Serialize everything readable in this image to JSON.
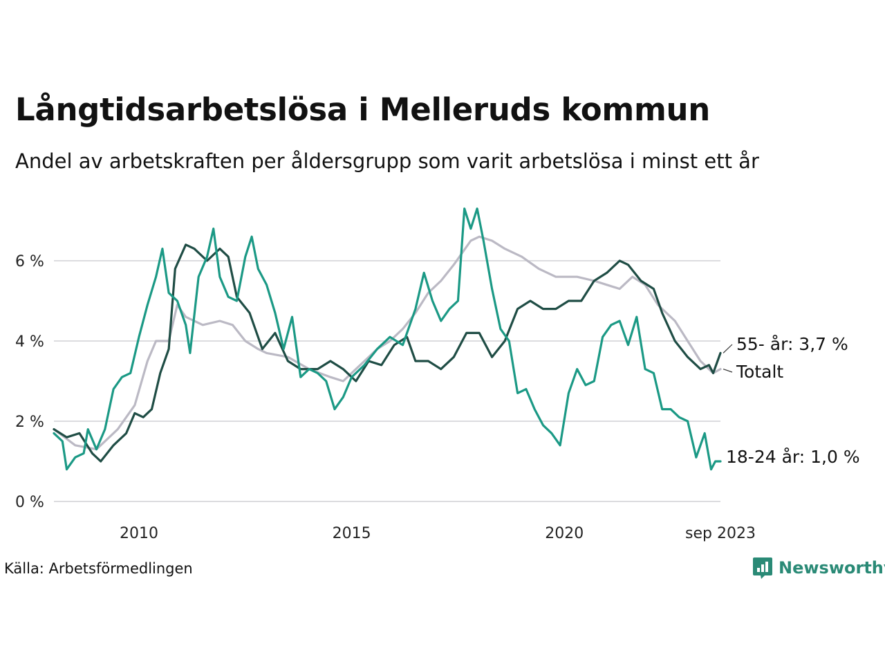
{
  "header": {
    "title": "Långtidsarbetslösa i Melleruds kommun",
    "subtitle": "Andel av arbetskraften per åldersgrupp som varit arbetslösa i minst ett år"
  },
  "footer": {
    "source": "Källa: Arbetsförmedlingen",
    "brand": "Newsworthy",
    "brand_color": "#2a8a76",
    "brand_icon": "bar-chart-bubble-icon"
  },
  "chart_data": {
    "type": "line",
    "title": "Långtidsarbetslösa i Melleruds kommun",
    "xlabel": "",
    "ylabel": "",
    "x_range": [
      2008.0,
      2023.67
    ],
    "ylim": [
      0,
      7.4
    ],
    "y_ticks": [
      0,
      2,
      4,
      6
    ],
    "y_tick_labels": [
      "0 %",
      "2 %",
      "4 %",
      "6 %"
    ],
    "x_ticks": [
      2010,
      2015,
      2020,
      2023.67
    ],
    "x_tick_labels": [
      "2010",
      "2015",
      "2020",
      "sep 2023"
    ],
    "grid": true,
    "series": [
      {
        "name": "Totalt",
        "label": "Totalt",
        "color": "#bbb9c4",
        "points": [
          [
            2008.0,
            1.8
          ],
          [
            2008.5,
            1.4
          ],
          [
            2009.0,
            1.3
          ],
          [
            2009.5,
            1.8
          ],
          [
            2009.9,
            2.4
          ],
          [
            2010.2,
            3.5
          ],
          [
            2010.4,
            4.0
          ],
          [
            2010.7,
            4.0
          ],
          [
            2010.9,
            4.9
          ],
          [
            2011.1,
            4.6
          ],
          [
            2011.5,
            4.4
          ],
          [
            2011.9,
            4.5
          ],
          [
            2012.2,
            4.4
          ],
          [
            2012.5,
            4.0
          ],
          [
            2012.8,
            3.8
          ],
          [
            2013.0,
            3.7
          ],
          [
            2013.5,
            3.6
          ],
          [
            2014.0,
            3.3
          ],
          [
            2014.5,
            3.1
          ],
          [
            2014.8,
            3.0
          ],
          [
            2015.0,
            3.2
          ],
          [
            2015.3,
            3.5
          ],
          [
            2015.6,
            3.8
          ],
          [
            2015.9,
            4.0
          ],
          [
            2016.2,
            4.3
          ],
          [
            2016.5,
            4.7
          ],
          [
            2016.8,
            5.2
          ],
          [
            2017.1,
            5.5
          ],
          [
            2017.4,
            5.9
          ],
          [
            2017.6,
            6.2
          ],
          [
            2017.8,
            6.5
          ],
          [
            2018.0,
            6.6
          ],
          [
            2018.3,
            6.5
          ],
          [
            2018.6,
            6.3
          ],
          [
            2019.0,
            6.1
          ],
          [
            2019.4,
            5.8
          ],
          [
            2019.8,
            5.6
          ],
          [
            2020.3,
            5.6
          ],
          [
            2020.7,
            5.5
          ],
          [
            2021.0,
            5.4
          ],
          [
            2021.3,
            5.3
          ],
          [
            2021.6,
            5.6
          ],
          [
            2021.9,
            5.4
          ],
          [
            2022.2,
            4.9
          ],
          [
            2022.6,
            4.5
          ],
          [
            2022.9,
            4.0
          ],
          [
            2023.2,
            3.5
          ],
          [
            2023.5,
            3.2
          ],
          [
            2023.67,
            3.3
          ]
        ]
      },
      {
        "name": "55- år",
        "label": "55- år: 3,7 %",
        "color": "#1f4d45",
        "points": [
          [
            2008.0,
            1.8
          ],
          [
            2008.3,
            1.6
          ],
          [
            2008.6,
            1.7
          ],
          [
            2008.9,
            1.2
          ],
          [
            2009.1,
            1.0
          ],
          [
            2009.4,
            1.4
          ],
          [
            2009.7,
            1.7
          ],
          [
            2009.9,
            2.2
          ],
          [
            2010.1,
            2.1
          ],
          [
            2010.3,
            2.3
          ],
          [
            2010.5,
            3.2
          ],
          [
            2010.7,
            3.8
          ],
          [
            2010.85,
            5.8
          ],
          [
            2011.1,
            6.4
          ],
          [
            2011.3,
            6.3
          ],
          [
            2011.6,
            6.0
          ],
          [
            2011.9,
            6.3
          ],
          [
            2012.1,
            6.1
          ],
          [
            2012.3,
            5.1
          ],
          [
            2012.6,
            4.7
          ],
          [
            2012.9,
            3.8
          ],
          [
            2013.2,
            4.2
          ],
          [
            2013.5,
            3.5
          ],
          [
            2013.8,
            3.3
          ],
          [
            2014.2,
            3.3
          ],
          [
            2014.5,
            3.5
          ],
          [
            2014.8,
            3.3
          ],
          [
            2015.1,
            3.0
          ],
          [
            2015.4,
            3.5
          ],
          [
            2015.7,
            3.4
          ],
          [
            2016.0,
            3.9
          ],
          [
            2016.3,
            4.1
          ],
          [
            2016.5,
            3.5
          ],
          [
            2016.8,
            3.5
          ],
          [
            2017.1,
            3.3
          ],
          [
            2017.4,
            3.6
          ],
          [
            2017.7,
            4.2
          ],
          [
            2018.0,
            4.2
          ],
          [
            2018.3,
            3.6
          ],
          [
            2018.6,
            4.0
          ],
          [
            2018.9,
            4.8
          ],
          [
            2019.2,
            5.0
          ],
          [
            2019.5,
            4.8
          ],
          [
            2019.8,
            4.8
          ],
          [
            2020.1,
            5.0
          ],
          [
            2020.4,
            5.0
          ],
          [
            2020.7,
            5.5
          ],
          [
            2021.0,
            5.7
          ],
          [
            2021.3,
            6.0
          ],
          [
            2021.5,
            5.9
          ],
          [
            2021.8,
            5.5
          ],
          [
            2022.1,
            5.3
          ],
          [
            2022.3,
            4.7
          ],
          [
            2022.6,
            4.0
          ],
          [
            2022.9,
            3.6
          ],
          [
            2023.2,
            3.3
          ],
          [
            2023.4,
            3.4
          ],
          [
            2023.5,
            3.2
          ],
          [
            2023.67,
            3.7
          ]
        ]
      },
      {
        "name": "18-24 år",
        "label": "18-24 år: 1,0 %",
        "color": "#1b9985",
        "points": [
          [
            2008.0,
            1.7
          ],
          [
            2008.2,
            1.5
          ],
          [
            2008.3,
            0.8
          ],
          [
            2008.5,
            1.1
          ],
          [
            2008.7,
            1.2
          ],
          [
            2008.8,
            1.8
          ],
          [
            2009.0,
            1.3
          ],
          [
            2009.2,
            1.8
          ],
          [
            2009.4,
            2.8
          ],
          [
            2009.6,
            3.1
          ],
          [
            2009.8,
            3.2
          ],
          [
            2010.0,
            4.1
          ],
          [
            2010.2,
            4.9
          ],
          [
            2010.4,
            5.6
          ],
          [
            2010.55,
            6.3
          ],
          [
            2010.7,
            5.2
          ],
          [
            2010.9,
            5.0
          ],
          [
            2011.1,
            4.4
          ],
          [
            2011.2,
            3.7
          ],
          [
            2011.4,
            5.6
          ],
          [
            2011.6,
            6.1
          ],
          [
            2011.75,
            6.8
          ],
          [
            2011.9,
            5.6
          ],
          [
            2012.1,
            5.1
          ],
          [
            2012.3,
            5.0
          ],
          [
            2012.5,
            6.1
          ],
          [
            2012.65,
            6.6
          ],
          [
            2012.8,
            5.8
          ],
          [
            2013.0,
            5.4
          ],
          [
            2013.2,
            4.7
          ],
          [
            2013.4,
            3.8
          ],
          [
            2013.6,
            4.6
          ],
          [
            2013.8,
            3.1
          ],
          [
            2014.0,
            3.3
          ],
          [
            2014.2,
            3.2
          ],
          [
            2014.4,
            3.0
          ],
          [
            2014.6,
            2.3
          ],
          [
            2014.8,
            2.6
          ],
          [
            2015.0,
            3.1
          ],
          [
            2015.3,
            3.4
          ],
          [
            2015.6,
            3.8
          ],
          [
            2015.9,
            4.1
          ],
          [
            2016.2,
            3.9
          ],
          [
            2016.5,
            4.8
          ],
          [
            2016.7,
            5.7
          ],
          [
            2016.9,
            5.0
          ],
          [
            2017.1,
            4.5
          ],
          [
            2017.3,
            4.8
          ],
          [
            2017.5,
            5.0
          ],
          [
            2017.65,
            7.3
          ],
          [
            2017.8,
            6.8
          ],
          [
            2017.95,
            7.3
          ],
          [
            2018.1,
            6.5
          ],
          [
            2018.3,
            5.3
          ],
          [
            2018.5,
            4.3
          ],
          [
            2018.7,
            4.0
          ],
          [
            2018.9,
            2.7
          ],
          [
            2019.1,
            2.8
          ],
          [
            2019.3,
            2.3
          ],
          [
            2019.5,
            1.9
          ],
          [
            2019.7,
            1.7
          ],
          [
            2019.9,
            1.4
          ],
          [
            2020.1,
            2.7
          ],
          [
            2020.3,
            3.3
          ],
          [
            2020.5,
            2.9
          ],
          [
            2020.7,
            3.0
          ],
          [
            2020.9,
            4.1
          ],
          [
            2021.1,
            4.4
          ],
          [
            2021.3,
            4.5
          ],
          [
            2021.5,
            3.9
          ],
          [
            2021.7,
            4.6
          ],
          [
            2021.9,
            3.3
          ],
          [
            2022.1,
            3.2
          ],
          [
            2022.3,
            2.3
          ],
          [
            2022.5,
            2.3
          ],
          [
            2022.7,
            2.1
          ],
          [
            2022.9,
            2.0
          ],
          [
            2023.1,
            1.1
          ],
          [
            2023.3,
            1.7
          ],
          [
            2023.45,
            0.8
          ],
          [
            2023.55,
            1.0
          ],
          [
            2023.67,
            1.0
          ]
        ]
      }
    ]
  }
}
